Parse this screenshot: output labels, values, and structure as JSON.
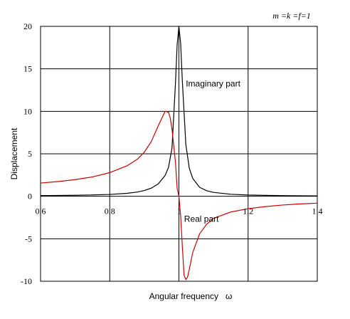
{
  "chart_data": {
    "type": "line",
    "title": "",
    "xlabel": "Angular frequency   ω",
    "ylabel": "Displacement",
    "parameter_text": "m =k =f=1",
    "xlim": [
      0.6,
      1.4
    ],
    "ylim": [
      -10,
      20
    ],
    "x_ticks": [
      "0.6",
      "0.8",
      "1",
      "1.2",
      "1.4"
    ],
    "y_ticks": [
      "20",
      "15",
      "10",
      "5",
      "0",
      "-5",
      "-10"
    ],
    "grid": true,
    "annotations": [
      {
        "text": "Imaginary part",
        "x": 1.02,
        "y": 12.9
      },
      {
        "text": "Real part",
        "x": 1.015,
        "y": -3.0
      }
    ],
    "series": [
      {
        "name": "",
        "color": "#000000",
        "x": [
          0.6,
          0.65,
          0.7,
          0.75,
          0.8,
          0.85,
          0.88,
          0.9,
          0.92,
          0.94,
          0.96,
          0.97,
          0.98,
          0.99,
          0.995,
          1.0,
          1.005,
          1.01,
          1.02,
          1.03,
          1.04,
          1.06,
          1.08,
          1.1,
          1.15,
          1.2,
          1.25,
          1.3,
          1.35,
          1.4
        ],
        "y": [
          0.08,
          0.1,
          0.12,
          0.16,
          0.22,
          0.35,
          0.5,
          0.68,
          0.96,
          1.45,
          2.44,
          3.42,
          5.67,
          13.3,
          17.9,
          20.0,
          18.0,
          13.5,
          6.1,
          3.3,
          2.1,
          1.05,
          0.66,
          0.46,
          0.24,
          0.15,
          0.11,
          0.08,
          0.06,
          0.05
        ]
      },
      {
        "name": "",
        "color": "#cc0000",
        "x": [
          0.6,
          0.65,
          0.7,
          0.75,
          0.8,
          0.85,
          0.88,
          0.9,
          0.92,
          0.94,
          0.96,
          0.97,
          0.975,
          0.98,
          0.99,
          0.995,
          1.0,
          1.005,
          1.01,
          1.015,
          1.02,
          1.025,
          1.03,
          1.04,
          1.06,
          1.08,
          1.1,
          1.15,
          1.2,
          1.25,
          1.3,
          1.35,
          1.4
        ],
        "y": [
          1.56,
          1.73,
          1.96,
          2.28,
          2.78,
          3.59,
          4.37,
          5.2,
          6.43,
          8.27,
          10.0,
          9.9,
          9.2,
          7.9,
          4.0,
          0.9,
          0.0,
          -2.3,
          -6.0,
          -9.3,
          -9.8,
          -9.5,
          -8.6,
          -6.6,
          -4.4,
          -3.3,
          -2.6,
          -1.85,
          -1.46,
          -1.21,
          -1.03,
          -0.9,
          -0.81
        ]
      }
    ]
  }
}
